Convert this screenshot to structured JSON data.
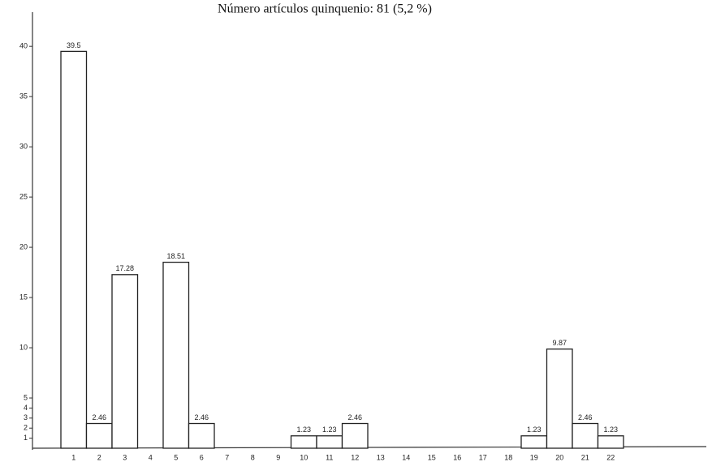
{
  "chart_data": {
    "type": "bar",
    "title": "Número artículos quinquenio: 81 (5,2 %)",
    "categories": [
      "1",
      "2",
      "3",
      "4",
      "5",
      "6",
      "7",
      "8",
      "9",
      "10",
      "11",
      "12",
      "13",
      "14",
      "15",
      "16",
      "17",
      "18",
      "19",
      "20",
      "21",
      "22"
    ],
    "values": [
      39.5,
      2.46,
      17.28,
      0,
      18.51,
      2.46,
      0,
      0,
      0,
      1.23,
      1.23,
      2.46,
      0,
      0,
      0,
      0,
      0,
      0,
      1.23,
      9.87,
      2.46,
      1.23
    ],
    "color": "#ffffff",
    "ylim": [
      0,
      43
    ],
    "yticks": [
      1,
      2,
      3,
      4,
      5,
      10,
      15,
      20,
      25,
      30,
      35,
      40
    ],
    "grid": false
  }
}
